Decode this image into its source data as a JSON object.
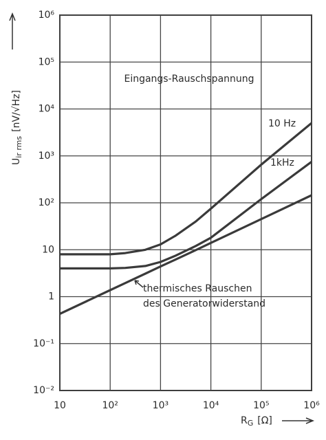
{
  "chart_data": {
    "type": "line",
    "title": "Eingangs-Rauschspannung",
    "y_label": "U",
    "y_label_subscript": "ir rms",
    "y_label_units": "[nV/√Hz]",
    "x_label": "R",
    "x_label_subscript": "G",
    "x_label_units": "[Ω]",
    "x": [
      10,
      100,
      200,
      500,
      1000,
      2000,
      5000,
      10000,
      100000,
      1000000
    ],
    "series": [
      {
        "name": "10 Hz",
        "color": "#3a3a3a",
        "values": [
          8,
          8,
          8.5,
          10,
          13,
          20,
          40,
          75,
          650,
          5000
        ]
      },
      {
        "name": "1kHz",
        "color": "#3a3a3a",
        "values": [
          4,
          4,
          4.1,
          4.5,
          5.5,
          7.5,
          12,
          18,
          120,
          750
        ]
      },
      {
        "name": "thermisches Rauschen des Generatorwiderstand",
        "color": "#3a3a3a",
        "values": [
          0.43,
          1.38,
          1.95,
          3.1,
          4.4,
          6.2,
          9.8,
          14,
          45,
          145
        ]
      }
    ],
    "annotations": [
      "thermisches Rauschen",
      "des Generatorwiderstand"
    ],
    "log_x": true,
    "log_y": true,
    "grid": true,
    "xlim": [
      10,
      1000000
    ],
    "xticks": [
      10,
      {
        "value": 100,
        "label": "10²"
      },
      {
        "value": 1000,
        "label": "10³"
      },
      {
        "value": 10000,
        "label": "10⁴"
      },
      {
        "value": 100000,
        "label": "10⁵"
      },
      {
        "value": 1000000,
        "label": "10⁶"
      }
    ],
    "ylim": [
      0.01,
      1000000
    ],
    "yticks": [
      {
        "value": 0.01,
        "label": "10⁻²"
      },
      {
        "value": 0.1,
        "label": "10⁻¹"
      },
      1,
      10,
      {
        "value": 100,
        "label": "10²"
      },
      {
        "value": 1000,
        "label": "10³"
      },
      {
        "value": 10000,
        "label": "10⁴"
      },
      {
        "value": 100000,
        "label": "10⁵"
      },
      {
        "value": 1000000,
        "label": "10⁶"
      }
    ]
  }
}
